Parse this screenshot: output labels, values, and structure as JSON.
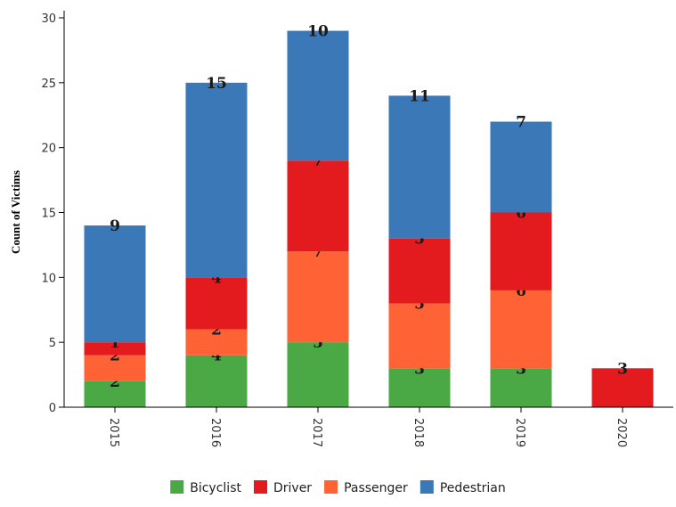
{
  "chart_data": {
    "type": "bar",
    "stacked": true,
    "title": "",
    "xlabel": "",
    "ylabel": "Count of Victims",
    "ylim": [
      0,
      30
    ],
    "yticks": [
      0,
      5,
      10,
      15,
      20,
      25,
      30
    ],
    "categories": [
      "2015",
      "2016",
      "2017",
      "2018",
      "2019",
      "2020"
    ],
    "series": [
      {
        "name": "Bicyclist",
        "color": "#4aa845",
        "values": [
          2,
          4,
          5,
          3,
          3,
          0
        ]
      },
      {
        "name": "Passenger",
        "color": "#ff6234",
        "values": [
          2,
          2,
          7,
          5,
          6,
          0
        ]
      },
      {
        "name": "Driver",
        "color": "#e31b1e",
        "values": [
          1,
          4,
          7,
          5,
          6,
          3
        ]
      },
      {
        "name": "Pedestrian",
        "color": "#3a78b8",
        "values": [
          9,
          15,
          10,
          11,
          7,
          0
        ]
      }
    ],
    "legend": {
      "placement": "bottom",
      "entries": [
        {
          "name": "Bicyclist",
          "color": "#4aa845"
        },
        {
          "name": "Driver",
          "color": "#e31b1e"
        },
        {
          "name": "Passenger",
          "color": "#ff6234"
        },
        {
          "name": "Pedestrian",
          "color": "#3a78b8"
        }
      ]
    },
    "grid": false
  }
}
